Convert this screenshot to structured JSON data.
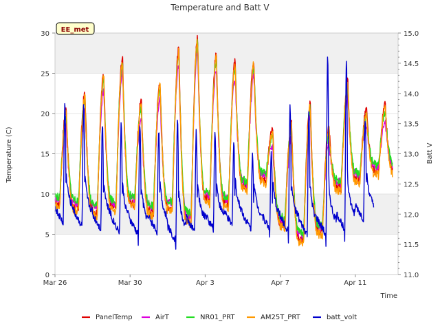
{
  "chart_data": {
    "type": "line",
    "title": "Temperature and Batt V",
    "badge": "EE_met",
    "xlabel": "Time",
    "ylabel": "Temperature (C)",
    "y2label": "Batt V",
    "xlim": [
      0,
      17.6
    ],
    "ylim": [
      0,
      30
    ],
    "y2lim": [
      11.0,
      15.0
    ],
    "x_ticks": [
      {
        "x": 0,
        "label": "Mar 26"
      },
      {
        "x": 4,
        "label": "Mar 30"
      },
      {
        "x": 8,
        "label": "Apr 3"
      },
      {
        "x": 12,
        "label": "Apr 7"
      },
      {
        "x": 16,
        "label": "Apr 11"
      }
    ],
    "y_ticks": [
      0,
      5,
      10,
      15,
      20,
      25,
      30
    ],
    "y2_ticks": [
      11.0,
      11.5,
      12.0,
      12.5,
      13.0,
      13.5,
      14.0,
      14.5,
      15.0
    ],
    "bands": [
      [
        5,
        10
      ],
      [
        25,
        30
      ]
    ],
    "grid": true,
    "legend_position": "bottom",
    "daily_min": [
      9.0,
      8.5,
      8.0,
      8.5,
      9.0,
      8.0,
      8.5,
      7.0,
      9.5,
      9.0,
      11.0,
      12.0,
      6.5,
      4.5,
      5.5,
      11.0,
      12.0,
      13.0
    ],
    "daily_max": [
      20.5,
      22.5,
      25.0,
      27.0,
      21.5,
      24.0,
      28.0,
      29.5,
      27.5,
      26.5,
      26.5,
      18.0,
      19.0,
      21.5,
      18.5,
      24.0,
      20.5,
      21.0
    ],
    "series": [
      {
        "name": "PanelTemp",
        "color": "#e00000",
        "max_offset": 0.0,
        "min_offset": 0.0,
        "y": [
          9.0,
          20.5,
          8.5,
          22.5,
          8.0,
          25.0,
          8.5,
          27.0,
          9.0,
          21.5,
          8.0,
          24.0,
          8.5,
          28.0,
          7.0,
          29.5,
          9.5,
          27.5,
          9.0,
          26.5,
          11.0,
          26.5,
          12.0,
          18.0,
          6.5,
          19.0,
          4.5,
          21.5,
          5.5,
          18.5,
          11.0,
          24.0,
          12.0,
          20.5,
          13.0,
          21.0
        ]
      },
      {
        "name": "AirT",
        "color": "#dd00dd",
        "max_offset": -2.0,
        "min_offset": 0.6,
        "y": [
          9.6,
          18.5,
          9.1,
          20.5,
          8.6,
          23.0,
          9.1,
          25.0,
          9.6,
          19.5,
          8.6,
          22.0,
          9.1,
          26.0,
          7.6,
          27.5,
          10.1,
          25.5,
          9.6,
          24.5,
          11.6,
          24.5,
          12.6,
          16.0,
          7.1,
          17.0,
          5.1,
          19.5,
          6.1,
          16.5,
          11.6,
          22.0,
          12.6,
          18.5,
          13.6,
          19.0
        ]
      },
      {
        "name": "NR01_PRT",
        "color": "#22dd22",
        "max_offset": -0.8,
        "min_offset": 0.8,
        "y": [
          9.8,
          19.7,
          9.3,
          21.7,
          8.8,
          24.2,
          9.3,
          26.2,
          9.8,
          20.7,
          8.8,
          23.2,
          9.3,
          27.2,
          7.8,
          28.7,
          10.3,
          26.7,
          9.8,
          25.7,
          11.8,
          25.7,
          12.8,
          17.2,
          7.3,
          18.2,
          5.3,
          20.7,
          6.3,
          17.7,
          11.8,
          23.2,
          12.8,
          19.7,
          13.8,
          20.2
        ]
      },
      {
        "name": "AM25T_PRT",
        "color": "#ff9900",
        "max_offset": -0.4,
        "min_offset": -0.4,
        "y": [
          8.6,
          20.1,
          8.1,
          22.1,
          7.6,
          24.6,
          8.1,
          26.6,
          8.6,
          21.1,
          7.6,
          23.6,
          8.1,
          27.6,
          6.6,
          29.1,
          9.1,
          27.1,
          8.6,
          26.1,
          10.6,
          26.1,
          11.6,
          17.6,
          6.1,
          18.6,
          4.1,
          21.1,
          5.1,
          18.1,
          10.6,
          23.6,
          11.6,
          20.1,
          12.6,
          20.6
        ]
      }
    ],
    "batt_volt": {
      "name": "batt_volt",
      "color": "#0000cc",
      "axis": "right",
      "daily_min": [
        11.9,
        11.85,
        11.8,
        11.75,
        11.7,
        11.75,
        11.6,
        11.75,
        11.8,
        11.85,
        11.8,
        11.8,
        11.75,
        11.7,
        11.7,
        11.8,
        11.95
      ],
      "daily_peak": [
        13.85,
        13.8,
        13.5,
        13.5,
        13.5,
        13.4,
        13.6,
        13.35,
        13.4,
        13.2,
        13.0,
        13.0,
        13.8,
        13.7,
        14.6,
        14.55,
        13.6
      ],
      "series_min": 11.45,
      "series_max": 14.6
    }
  }
}
